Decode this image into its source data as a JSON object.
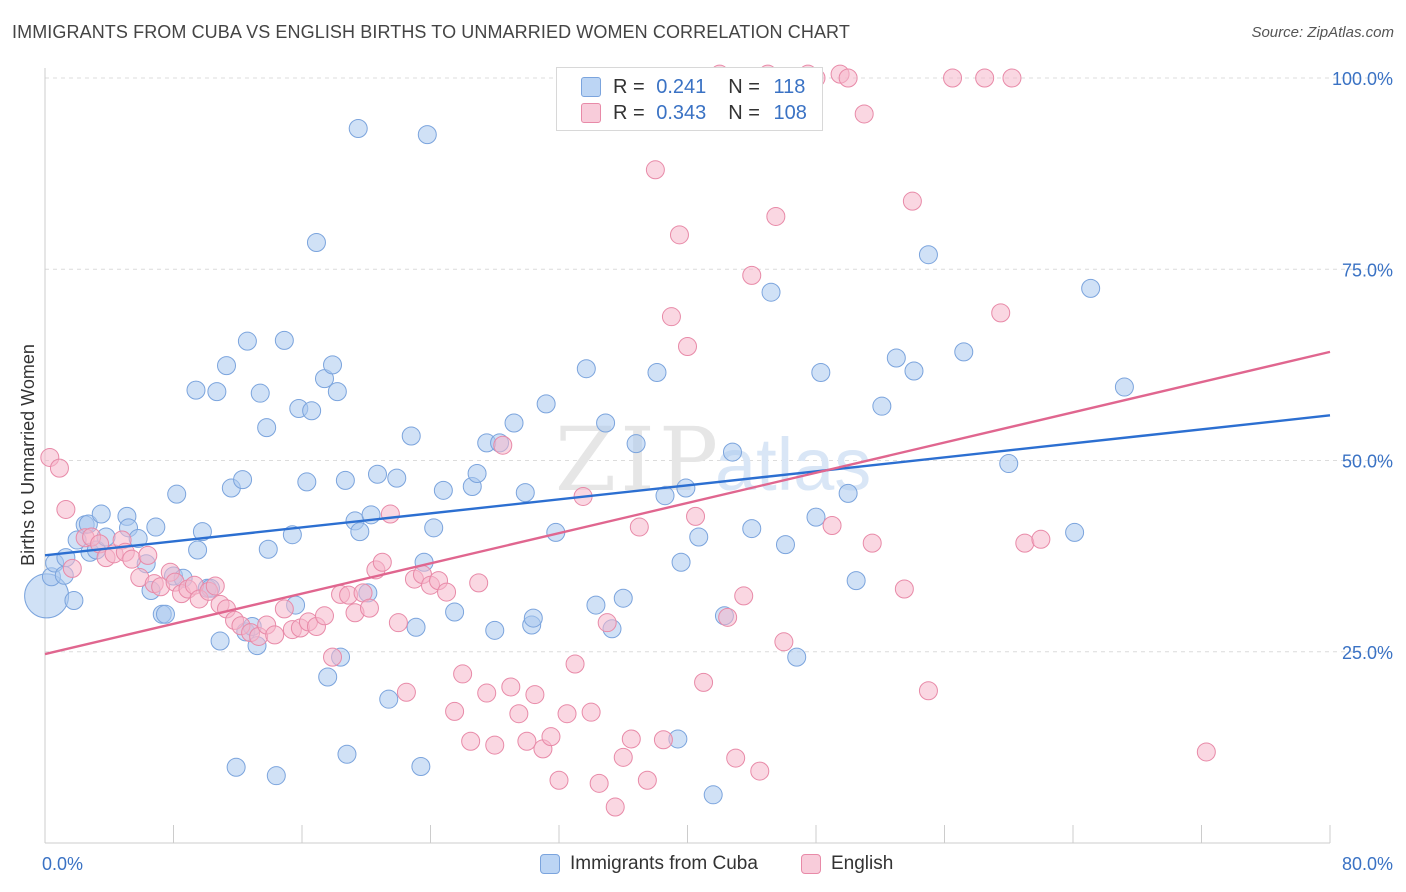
{
  "title": "IMMIGRANTS FROM CUBA VS ENGLISH BIRTHS TO UNMARRIED WOMEN CORRELATION CHART",
  "source": "Source: ZipAtlas.com",
  "watermark": {
    "zip": "ZIP",
    "atlas": "atlas"
  },
  "legend_top": {
    "r_label": "R =",
    "n_label": "N =",
    "rows": [
      {
        "r": "0.241",
        "n": "118",
        "color": "#a9c8ef"
      },
      {
        "r": "0.343",
        "n": "108",
        "color": "#f5b7ca"
      }
    ]
  },
  "chart_data": {
    "type": "scatter",
    "title": "IMMIGRANTS FROM CUBA VS ENGLISH BIRTHS TO UNMARRIED WOMEN CORRELATION CHART",
    "xlabel": "",
    "ylabel": "Births to Unmarried Women",
    "xlim": [
      0,
      80
    ],
    "ylim": [
      0,
      100
    ],
    "x_tick_labels": [
      "0.0%",
      "80.0%"
    ],
    "y_ticks": [
      25,
      50,
      75,
      100
    ],
    "y_tick_labels": [
      "25.0%",
      "50.0%",
      "75.0%",
      "100.0%"
    ],
    "grid": "horizontal-dashed",
    "legend_position": "bottom-center",
    "series": [
      {
        "name": "Immigrants from Cuba",
        "color": "#a9c8ef",
        "stroke": "#7ba4dd",
        "trend_color": "#2c6fd1",
        "trend": {
          "x0": 0,
          "y0": 37.6,
          "x1": 80,
          "y1": 55.9
        },
        "points": [
          [
            0.1,
            32.3,
            4
          ],
          [
            0.4,
            34.8,
            1
          ],
          [
            0.6,
            36.6,
            1
          ],
          [
            1.2,
            35.0,
            1
          ],
          [
            1.3,
            37.3,
            1
          ],
          [
            1.8,
            31.7,
            1
          ],
          [
            2.0,
            39.6,
            1
          ],
          [
            2.5,
            41.6,
            1
          ],
          [
            2.7,
            41.7,
            1
          ],
          [
            2.8,
            38.0,
            1
          ],
          [
            3.2,
            38.3,
            1
          ],
          [
            3.5,
            43.0,
            1
          ],
          [
            3.8,
            40.0,
            1
          ],
          [
            5.1,
            42.7,
            1
          ],
          [
            5.2,
            41.2,
            1
          ],
          [
            5.8,
            39.8,
            1
          ],
          [
            6.3,
            36.5,
            1
          ],
          [
            6.6,
            33.0,
            1
          ],
          [
            6.9,
            41.3,
            1
          ],
          [
            7.3,
            29.9,
            1
          ],
          [
            7.5,
            29.9,
            1
          ],
          [
            8.0,
            34.9,
            1
          ],
          [
            8.2,
            45.6,
            1
          ],
          [
            8.6,
            34.6,
            1
          ],
          [
            9.4,
            59.2,
            1
          ],
          [
            9.5,
            38.3,
            1
          ],
          [
            9.8,
            40.7,
            1
          ],
          [
            10.1,
            33.3,
            1
          ],
          [
            10.3,
            33.3,
            1
          ],
          [
            10.7,
            59.0,
            1
          ],
          [
            10.9,
            26.4,
            1
          ],
          [
            11.3,
            62.4,
            1
          ],
          [
            11.6,
            46.4,
            1
          ],
          [
            11.9,
            9.9,
            1
          ],
          [
            12.3,
            47.5,
            1
          ],
          [
            12.5,
            27.6,
            1
          ],
          [
            12.6,
            65.6,
            1
          ],
          [
            12.9,
            28.3,
            1
          ],
          [
            13.2,
            25.8,
            1
          ],
          [
            13.4,
            58.8,
            1
          ],
          [
            13.8,
            54.3,
            1
          ],
          [
            13.9,
            38.4,
            1
          ],
          [
            14.4,
            8.8,
            1
          ],
          [
            14.9,
            65.7,
            1
          ],
          [
            15.4,
            40.3,
            1
          ],
          [
            15.6,
            31.1,
            1
          ],
          [
            15.8,
            56.8,
            1
          ],
          [
            16.3,
            47.2,
            1
          ],
          [
            16.6,
            56.5,
            1
          ],
          [
            16.9,
            78.5,
            1
          ],
          [
            17.4,
            60.7,
            1
          ],
          [
            17.6,
            21.7,
            1
          ],
          [
            17.9,
            62.5,
            1
          ],
          [
            18.2,
            59.0,
            1
          ],
          [
            18.4,
            24.3,
            1
          ],
          [
            18.7,
            47.4,
            1
          ],
          [
            18.8,
            11.6,
            1
          ],
          [
            19.3,
            42.1,
            1
          ],
          [
            19.5,
            93.4,
            1
          ],
          [
            19.6,
            40.7,
            1
          ],
          [
            20.1,
            32.7,
            1
          ],
          [
            20.3,
            42.9,
            1
          ],
          [
            20.7,
            48.2,
            1
          ],
          [
            21.4,
            18.8,
            1
          ],
          [
            21.9,
            47.7,
            1
          ],
          [
            22.8,
            53.2,
            1
          ],
          [
            23.1,
            28.2,
            1
          ],
          [
            23.4,
            10.0,
            1
          ],
          [
            23.6,
            36.7,
            1
          ],
          [
            23.8,
            92.6,
            1
          ],
          [
            24.2,
            41.2,
            1
          ],
          [
            24.8,
            46.1,
            1
          ],
          [
            25.5,
            30.2,
            1
          ],
          [
            26.6,
            46.6,
            1
          ],
          [
            26.9,
            48.3,
            1
          ],
          [
            27.5,
            52.3,
            1
          ],
          [
            28.0,
            27.8,
            1
          ],
          [
            28.3,
            52.3,
            1
          ],
          [
            29.2,
            54.9,
            1
          ],
          [
            29.9,
            45.8,
            1
          ],
          [
            30.3,
            28.5,
            1
          ],
          [
            30.4,
            29.4,
            1
          ],
          [
            31.2,
            57.4,
            1
          ],
          [
            31.8,
            40.6,
            1
          ],
          [
            33.7,
            62.0,
            1
          ],
          [
            34.3,
            31.1,
            1
          ],
          [
            34.9,
            54.9,
            1
          ],
          [
            35.3,
            28.0,
            1
          ],
          [
            36.0,
            32.0,
            1
          ],
          [
            36.8,
            52.2,
            1
          ],
          [
            38.1,
            61.5,
            1
          ],
          [
            38.6,
            45.4,
            1
          ],
          [
            39.4,
            13.6,
            1
          ],
          [
            39.6,
            36.7,
            1
          ],
          [
            39.9,
            46.4,
            1
          ],
          [
            40.7,
            40.0,
            1
          ],
          [
            41.6,
            6.3,
            1
          ],
          [
            42.3,
            29.7,
            1
          ],
          [
            42.8,
            51.1,
            1
          ],
          [
            44.0,
            41.1,
            1
          ],
          [
            45.2,
            72.0,
            1
          ],
          [
            46.1,
            39.0,
            1
          ],
          [
            46.8,
            24.3,
            1
          ],
          [
            48.0,
            42.6,
            1
          ],
          [
            48.3,
            61.5,
            1
          ],
          [
            50.0,
            45.7,
            1
          ],
          [
            50.5,
            34.3,
            1
          ],
          [
            52.1,
            57.1,
            1
          ],
          [
            53.0,
            63.4,
            1
          ],
          [
            54.1,
            61.7,
            1
          ],
          [
            55.0,
            76.9,
            1
          ],
          [
            57.2,
            64.2,
            1
          ],
          [
            60.0,
            49.6,
            1
          ],
          [
            64.1,
            40.6,
            1
          ],
          [
            65.1,
            72.5,
            1
          ],
          [
            67.2,
            59.6,
            1
          ]
        ]
      },
      {
        "name": "English",
        "color": "#f5b7ca",
        "stroke": "#e88aa8",
        "trend_color": "#e0668f",
        "trend": {
          "x0": 0,
          "y0": 24.7,
          "x1": 80,
          "y1": 64.2
        },
        "points": [
          [
            0.3,
            50.4
          ],
          [
            0.9,
            49.0
          ],
          [
            1.3,
            43.6
          ],
          [
            1.7,
            35.9
          ],
          [
            2.5,
            39.9
          ],
          [
            2.9,
            40.0
          ],
          [
            3.4,
            39.1
          ],
          [
            3.8,
            37.3
          ],
          [
            4.3,
            37.8
          ],
          [
            4.8,
            39.6
          ],
          [
            5.0,
            38.0
          ],
          [
            5.4,
            37.1
          ],
          [
            5.9,
            34.7
          ],
          [
            6.4,
            37.6
          ],
          [
            6.8,
            33.9
          ],
          [
            7.2,
            33.5
          ],
          [
            7.8,
            35.4
          ],
          [
            8.1,
            34.1
          ],
          [
            8.5,
            32.6
          ],
          [
            8.9,
            33.2
          ],
          [
            9.3,
            33.7
          ],
          [
            9.6,
            31.9
          ],
          [
            10.2,
            32.9
          ],
          [
            10.6,
            33.6
          ],
          [
            10.9,
            31.2
          ],
          [
            11.3,
            30.6
          ],
          [
            11.8,
            29.1
          ],
          [
            12.2,
            28.4
          ],
          [
            12.8,
            27.5
          ],
          [
            13.3,
            27.0
          ],
          [
            13.8,
            28.5
          ],
          [
            14.3,
            27.2
          ],
          [
            14.9,
            30.6
          ],
          [
            15.4,
            27.9
          ],
          [
            15.9,
            28.1
          ],
          [
            16.4,
            28.9
          ],
          [
            16.9,
            28.3
          ],
          [
            17.4,
            29.7
          ],
          [
            17.9,
            24.3
          ],
          [
            18.4,
            32.5
          ],
          [
            18.9,
            32.4
          ],
          [
            19.3,
            30.1
          ],
          [
            19.8,
            32.7
          ],
          [
            20.2,
            30.7
          ],
          [
            20.6,
            35.7
          ],
          [
            21.0,
            36.7
          ],
          [
            21.5,
            43.0
          ],
          [
            22.0,
            28.8
          ],
          [
            22.5,
            19.7
          ],
          [
            23.0,
            34.5
          ],
          [
            23.5,
            35.1
          ],
          [
            24.0,
            33.7
          ],
          [
            24.5,
            34.3
          ],
          [
            25.0,
            32.8
          ],
          [
            25.5,
            17.2
          ],
          [
            26.0,
            22.1
          ],
          [
            26.5,
            13.3
          ],
          [
            27.0,
            34.0
          ],
          [
            27.5,
            19.6
          ],
          [
            28.0,
            12.8
          ],
          [
            28.5,
            52.0
          ],
          [
            29.0,
            20.4
          ],
          [
            29.5,
            16.9
          ],
          [
            30.0,
            13.3
          ],
          [
            30.5,
            19.4
          ],
          [
            31.0,
            12.3
          ],
          [
            31.5,
            13.9
          ],
          [
            32.0,
            8.2
          ],
          [
            32.5,
            16.9
          ],
          [
            33.0,
            23.4
          ],
          [
            33.5,
            45.3
          ],
          [
            34.0,
            17.1
          ],
          [
            34.5,
            7.8
          ],
          [
            35.0,
            28.8
          ],
          [
            35.5,
            4.7
          ],
          [
            36.0,
            11.2
          ],
          [
            36.5,
            13.6
          ],
          [
            37.0,
            41.3
          ],
          [
            37.5,
            8.2
          ],
          [
            38.0,
            88.0
          ],
          [
            38.5,
            13.5
          ],
          [
            39.0,
            68.8
          ],
          [
            39.5,
            79.5
          ],
          [
            40.0,
            64.9
          ],
          [
            40.5,
            42.7
          ],
          [
            41.0,
            21.0
          ],
          [
            42.0,
            100.5
          ],
          [
            42.5,
            29.5
          ],
          [
            43.0,
            11.1
          ],
          [
            43.5,
            32.3
          ],
          [
            44.0,
            74.2
          ],
          [
            44.5,
            9.4
          ],
          [
            45.0,
            100.5
          ],
          [
            45.5,
            81.9
          ],
          [
            46.0,
            26.3
          ],
          [
            47.5,
            100.5
          ],
          [
            48.0,
            100.0
          ],
          [
            49.0,
            41.5
          ],
          [
            49.5,
            100.5
          ],
          [
            50.0,
            100.0
          ],
          [
            51.0,
            95.3
          ],
          [
            51.5,
            39.2
          ],
          [
            53.5,
            33.2
          ],
          [
            54.0,
            83.9
          ],
          [
            55.0,
            19.9
          ],
          [
            56.5,
            100.0
          ],
          [
            58.5,
            100.0
          ],
          [
            59.5,
            69.3
          ],
          [
            60.2,
            100.0
          ],
          [
            61.0,
            39.2
          ],
          [
            62.0,
            39.7
          ],
          [
            72.3,
            11.9
          ]
        ]
      }
    ]
  }
}
